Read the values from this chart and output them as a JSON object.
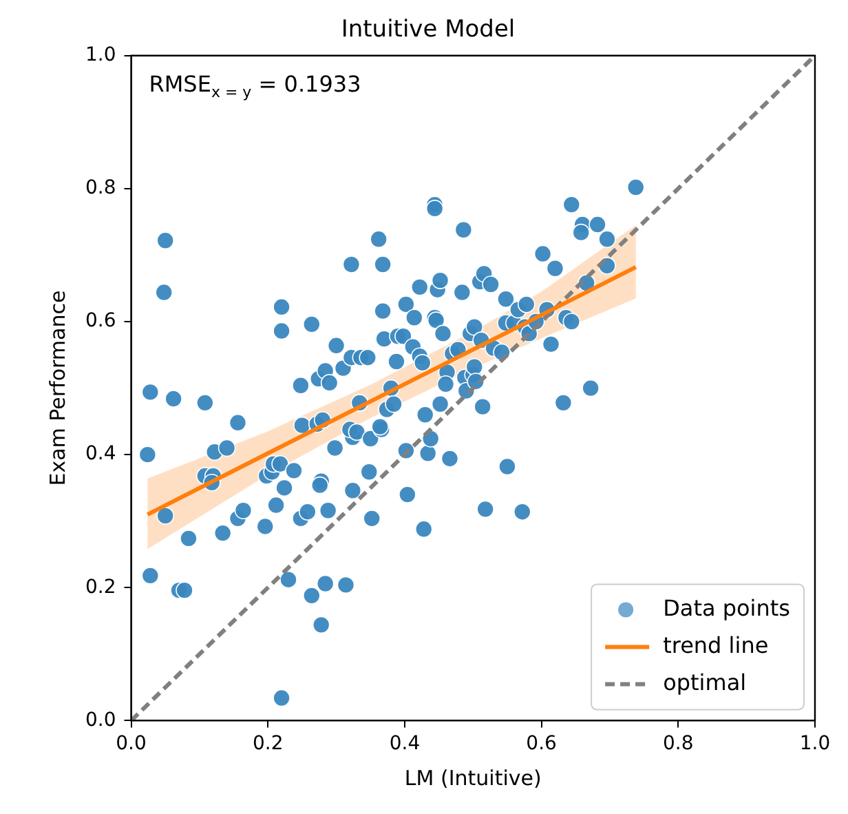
{
  "chart_data": {
    "type": "scatter",
    "title": "Intuitive Model",
    "xlabel": "LM (Intuitive)",
    "ylabel": "Exam Performance",
    "annotations": [
      "RMSE$_{x = y}$ = 0.1933"
    ],
    "xlim": [
      0,
      1
    ],
    "ylim": [
      0,
      1
    ],
    "xticks": [
      {
        "value": 0,
        "label": "0.0"
      },
      {
        "value": 0.2,
        "label": "0.2"
      },
      {
        "value": 0.4,
        "label": "0.4"
      },
      {
        "value": 0.6,
        "label": "0.6"
      },
      {
        "value": 0.8,
        "label": "0.8"
      },
      {
        "value": 1,
        "label": "1.0"
      }
    ],
    "yticks": [
      {
        "value": 0,
        "label": "0.0"
      },
      {
        "value": 0.2,
        "label": "0.2"
      },
      {
        "value": 0.4,
        "label": "0.4"
      },
      {
        "value": 0.6,
        "label": "0.6"
      },
      {
        "value": 0.8,
        "label": "0.8"
      },
      {
        "value": 1,
        "label": "1.0"
      }
    ],
    "grid": false,
    "legend": "bottom right",
    "marker": "circle",
    "series": [
      {
        "name": "Data points",
        "color": "#3a87bf",
        "x": [
          0.05,
          0.048,
          0.028,
          0.062,
          0.108,
          0.024,
          0.156,
          0.05,
          0.084,
          0.028,
          0.07,
          0.078,
          0.22,
          0.108,
          0.12,
          0.118,
          0.122,
          0.14,
          0.134,
          0.156,
          0.164,
          0.196,
          0.198,
          0.206,
          0.208,
          0.218,
          0.224,
          0.212,
          0.238,
          0.25,
          0.248,
          0.23,
          0.22,
          0.22,
          0.264,
          0.248,
          0.258,
          0.264,
          0.278,
          0.284,
          0.288,
          0.278,
          0.276,
          0.272,
          0.28,
          0.274,
          0.284,
          0.29,
          0.3,
          0.298,
          0.31,
          0.314,
          0.322,
          0.324,
          0.324,
          0.32,
          0.33,
          0.334,
          0.322,
          0.336,
          0.346,
          0.352,
          0.348,
          0.35,
          0.362,
          0.368,
          0.368,
          0.37,
          0.366,
          0.364,
          0.374,
          0.38,
          0.388,
          0.384,
          0.39,
          0.398,
          0.402,
          0.402,
          0.404,
          0.412,
          0.422,
          0.414,
          0.422,
          0.426,
          0.428,
          0.43,
          0.434,
          0.438,
          0.444,
          0.444,
          0.444,
          0.446,
          0.448,
          0.452,
          0.452,
          0.456,
          0.462,
          0.46,
          0.466,
          0.47,
          0.478,
          0.486,
          0.484,
          0.488,
          0.49,
          0.496,
          0.5,
          0.502,
          0.504,
          0.502,
          0.51,
          0.514,
          0.512,
          0.516,
          0.518,
          0.526,
          0.53,
          0.542,
          0.548,
          0.548,
          0.55,
          0.56,
          0.566,
          0.572,
          0.576,
          0.578,
          0.582,
          0.592,
          0.602,
          0.608,
          0.614,
          0.62,
          0.632,
          0.636,
          0.644,
          0.644,
          0.66,
          0.658,
          0.666,
          0.672,
          0.682,
          0.696,
          0.696,
          0.738
        ],
        "values": [
          0.722,
          0.644,
          0.494,
          0.484,
          0.478,
          0.4,
          0.448,
          0.308,
          0.274,
          0.218,
          0.196,
          0.196,
          0.034,
          0.368,
          0.368,
          0.358,
          0.404,
          0.41,
          0.282,
          0.304,
          0.316,
          0.292,
          0.368,
          0.374,
          0.386,
          0.386,
          0.35,
          0.324,
          0.376,
          0.444,
          0.504,
          0.212,
          0.586,
          0.622,
          0.596,
          0.304,
          0.314,
          0.188,
          0.144,
          0.206,
          0.316,
          0.36,
          0.354,
          0.446,
          0.452,
          0.514,
          0.526,
          0.508,
          0.564,
          0.41,
          0.53,
          0.204,
          0.686,
          0.346,
          0.426,
          0.438,
          0.434,
          0.478,
          0.546,
          0.546,
          0.546,
          0.304,
          0.374,
          0.424,
          0.724,
          0.686,
          0.616,
          0.574,
          0.438,
          0.442,
          0.468,
          0.5,
          0.54,
          0.476,
          0.578,
          0.578,
          0.626,
          0.406,
          0.34,
          0.562,
          0.652,
          0.606,
          0.548,
          0.538,
          0.288,
          0.46,
          0.402,
          0.424,
          0.776,
          0.77,
          0.606,
          0.602,
          0.648,
          0.662,
          0.476,
          0.582,
          0.524,
          0.506,
          0.394,
          0.552,
          0.558,
          0.738,
          0.644,
          0.516,
          0.496,
          0.582,
          0.52,
          0.532,
          0.51,
          0.592,
          0.66,
          0.472,
          0.572,
          0.672,
          0.318,
          0.656,
          0.56,
          0.554,
          0.598,
          0.634,
          0.382,
          0.598,
          0.618,
          0.314,
          0.592,
          0.626,
          0.582,
          0.6,
          0.702,
          0.618,
          0.566,
          0.68,
          0.478,
          0.606,
          0.6,
          0.776,
          0.746,
          0.734,
          0.658,
          0.5,
          0.746,
          0.724,
          0.684,
          0.802
        ]
      },
      {
        "name": "trend line",
        "type": "line",
        "color": "#ff7f0e",
        "line_style": "solid",
        "marker": "none",
        "x": [
          0.024,
          0.2,
          0.35,
          0.5,
          0.6,
          0.738
        ],
        "values": [
          0.31,
          0.402,
          0.48,
          0.558,
          0.61,
          0.682
        ],
        "lower": [
          0.258,
          0.37,
          0.455,
          0.53,
          0.575,
          0.635
        ],
        "upper": [
          0.364,
          0.435,
          0.505,
          0.585,
          0.645,
          0.745
        ]
      },
      {
        "name": "optimal",
        "type": "line",
        "color": "#808080",
        "line_style": "dashed",
        "marker": "none",
        "x": [
          0,
          1
        ],
        "values": [
          0,
          1
        ]
      }
    ]
  }
}
